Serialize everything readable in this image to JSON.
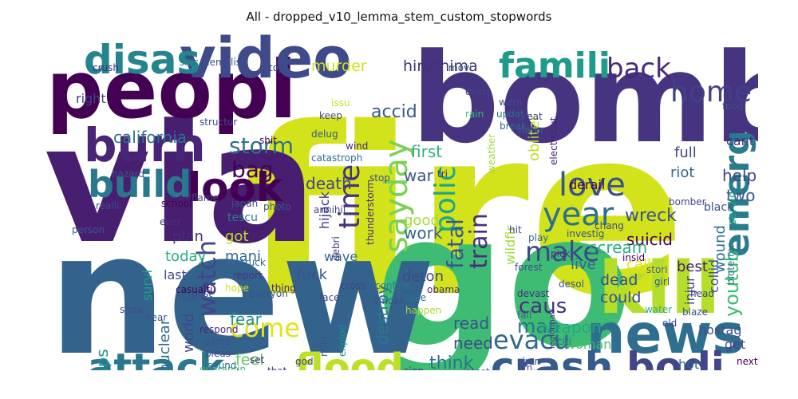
{
  "chart_data": {
    "type": "wordcloud",
    "title": "All - dropped_v10_lemma_stem_custom_stopwords",
    "background": "#ffffff",
    "colormap": "viridis",
    "words": [
      {
        "text": "fire",
        "weight": 1.0,
        "color": "#d2e21b"
      },
      {
        "text": "go",
        "weight": 0.8,
        "color": "#3fbc73"
      },
      {
        "text": "new",
        "weight": 0.78,
        "color": "#33638d"
      },
      {
        "text": "via",
        "weight": 0.76,
        "color": "#481f70"
      },
      {
        "text": "bomb",
        "weight": 0.74,
        "color": "#463480"
      },
      {
        "text": "peopl",
        "weight": 0.55,
        "color": "#440154"
      },
      {
        "text": "video",
        "weight": 0.42,
        "color": "#3e4a89"
      },
      {
        "text": "kill",
        "weight": 0.38,
        "color": "#b5de2b"
      },
      {
        "text": "news",
        "weight": 0.36,
        "color": "#2e6e8e"
      },
      {
        "text": "burn",
        "weight": 0.3,
        "color": "#482576"
      },
      {
        "text": "disas",
        "weight": 0.3,
        "color": "#25858e"
      },
      {
        "text": "crash",
        "weight": 0.28,
        "color": "#365c8d"
      },
      {
        "text": "bodi",
        "weight": 0.28,
        "color": "#404688"
      },
      {
        "text": "flood",
        "weight": 0.26,
        "color": "#bddf26"
      },
      {
        "text": "attack",
        "weight": 0.25,
        "color": "#2a788e"
      },
      {
        "text": "look",
        "weight": 0.25,
        "color": "#440154"
      },
      {
        "text": "build",
        "weight": 0.24,
        "color": "#2a788e"
      },
      {
        "text": "famili",
        "weight": 0.23,
        "color": "#1e9c89"
      },
      {
        "text": "emerg",
        "weight": 0.22,
        "color": "#287c8e"
      },
      {
        "text": "year",
        "weight": 0.22,
        "color": "#2d708e"
      },
      {
        "text": "sayday",
        "weight": 0.21,
        "color": "#7ad151"
      },
      {
        "text": "love",
        "weight": 0.2,
        "color": "#3b518b"
      },
      {
        "text": "home",
        "weight": 0.19,
        "color": "#424086"
      },
      {
        "text": "polic",
        "weight": 0.19,
        "color": "#21a685"
      },
      {
        "text": "back",
        "weight": 0.18,
        "color": "#482878"
      },
      {
        "text": "time",
        "weight": 0.18,
        "color": "#46327e"
      },
      {
        "text": "make",
        "weight": 0.18,
        "color": "#3e4989"
      },
      {
        "text": "come",
        "weight": 0.17,
        "color": "#e1e418"
      },
      {
        "text": "evacu",
        "weight": 0.17,
        "color": "#31688e"
      },
      {
        "text": "watch",
        "weight": 0.16,
        "color": "#404588"
      },
      {
        "text": "storm",
        "weight": 0.14,
        "color": "#2c728e"
      },
      {
        "text": "train",
        "weight": 0.14,
        "color": "#472d7b"
      },
      {
        "text": "bag",
        "weight": 0.14,
        "color": "#440154"
      },
      {
        "text": "fatal",
        "weight": 0.13,
        "color": "#39568c"
      },
      {
        "text": "youtub",
        "weight": 0.12,
        "color": "#3dbc74"
      },
      {
        "text": "wreck",
        "weight": 0.12,
        "color": "#3b518b"
      },
      {
        "text": "california",
        "weight": 0.11,
        "color": "#2d718e"
      },
      {
        "text": "suicid",
        "weight": 0.11,
        "color": "#440154"
      },
      {
        "text": "scream",
        "weight": 0.11,
        "color": "#29af7f"
      },
      {
        "text": "caus",
        "weight": 0.11,
        "color": "#472f7d"
      },
      {
        "text": "man",
        "weight": 0.11,
        "color": "#2c728e"
      },
      {
        "text": "accid",
        "weight": 0.1,
        "color": "#38598c"
      },
      {
        "text": "death",
        "weight": 0.1,
        "color": "#414487"
      },
      {
        "text": "hiroshima",
        "weight": 0.09,
        "color": "#46307e"
      },
      {
        "text": "murder",
        "weight": 0.09,
        "color": "#d0e11c"
      },
      {
        "text": "weapon",
        "weight": 0.09,
        "color": "#22a785"
      },
      {
        "text": "think",
        "weight": 0.09,
        "color": "#2c738e"
      },
      {
        "text": "life",
        "weight": 0.09,
        "color": "#440154"
      },
      {
        "text": "drown",
        "weight": 0.09,
        "color": "#38598c"
      },
      {
        "text": "fear",
        "weight": 0.09,
        "color": "#218f8d"
      },
      {
        "text": "feel",
        "weight": 0.09,
        "color": "#5ec962"
      },
      {
        "text": "destroy",
        "weight": 0.09,
        "color": "#2a768e"
      },
      {
        "text": "collaps",
        "weight": 0.09,
        "color": "#21918c"
      },
      {
        "text": "survi",
        "weight": 0.08,
        "color": "#1fa088"
      },
      {
        "text": "nuclear",
        "weight": 0.08,
        "color": "#306a8e"
      },
      {
        "text": "world",
        "weight": 0.08,
        "color": "#3f4788"
      },
      {
        "text": "need",
        "weight": 0.08,
        "color": "#3e4989"
      },
      {
        "text": "read",
        "weight": 0.08,
        "color": "#3b528b"
      },
      {
        "text": "work",
        "weight": 0.08,
        "color": "#33638d"
      },
      {
        "text": "good",
        "weight": 0.08,
        "color": "#a5db36"
      },
      {
        "text": "war",
        "weight": 0.08,
        "color": "#3a538b"
      },
      {
        "text": "first",
        "weight": 0.08,
        "color": "#2db27d"
      },
      {
        "text": "two",
        "weight": 0.08,
        "color": "#38598c"
      },
      {
        "text": "help",
        "weight": 0.08,
        "color": "#404588"
      },
      {
        "text": "dead",
        "weight": 0.08,
        "color": "#3c4f8a"
      },
      {
        "text": "could",
        "weight": 0.08,
        "color": "#3f4889"
      },
      {
        "text": "obliter",
        "weight": 0.08,
        "color": "#c2df23"
      },
      {
        "text": "derail",
        "weight": 0.07,
        "color": "#440154"
      },
      {
        "text": "fuck",
        "weight": 0.07,
        "color": "#3b518b"
      },
      {
        "text": "deton",
        "weight": 0.07,
        "color": "#3e4a89"
      },
      {
        "text": "today",
        "weight": 0.07,
        "color": "#29af7f"
      },
      {
        "text": "plan",
        "weight": 0.07,
        "color": "#472d7b"
      },
      {
        "text": "last",
        "weight": 0.07,
        "color": "#3e4989"
      },
      {
        "text": "full",
        "weight": 0.07,
        "color": "#404688"
      },
      {
        "text": "riot",
        "weight": 0.07,
        "color": "#31688e"
      },
      {
        "text": "cant",
        "weight": 0.07,
        "color": "#46337f"
      },
      {
        "text": "wound",
        "weight": 0.07,
        "color": "#2e6f8e"
      },
      {
        "text": "hostag",
        "weight": 0.07,
        "color": "#3b518b"
      },
      {
        "text": "get",
        "weight": 0.07,
        "color": "#3f4889"
      },
      {
        "text": "injur",
        "weight": 0.07,
        "color": "#414487"
      },
      {
        "text": "collid",
        "weight": 0.07,
        "color": "#39568c"
      },
      {
        "text": "call",
        "weight": 0.07,
        "color": "#e5e419"
      },
      {
        "text": "best",
        "weight": 0.07,
        "color": "#482071"
      },
      {
        "text": "wildfir",
        "weight": 0.07,
        "color": "#a2da37"
      },
      {
        "text": "live",
        "weight": 0.07,
        "color": "#31688e"
      },
      {
        "text": "got",
        "weight": 0.07,
        "color": "#bade28"
      },
      {
        "text": "mani",
        "weight": 0.07,
        "color": "#31688e"
      },
      {
        "text": "servic",
        "weight": 0.06,
        "color": "#22a884"
      },
      {
        "text": "bioterror",
        "weight": 0.06,
        "color": "#2a768e"
      },
      {
        "text": "hijack",
        "weight": 0.06,
        "color": "#46337f"
      },
      {
        "text": "wave",
        "weight": 0.06,
        "color": "#31688e"
      },
      {
        "text": "tescu",
        "weight": 0.06,
        "color": "#277f8e"
      },
      {
        "text": "thunderstorm",
        "weight": 0.06,
        "color": "#472d7b"
      },
      {
        "text": "woman",
        "weight": 0.06,
        "color": "#44bf70"
      },
      {
        "text": "even",
        "weight": 0.06,
        "color": "#2c738e"
      },
      {
        "text": "hot",
        "weight": 0.06,
        "color": "#2f6b8e"
      },
      {
        "text": "black",
        "weight": 0.06,
        "color": "#3c4f8a"
      },
      {
        "text": "right",
        "weight": 0.06,
        "color": "#424186"
      },
      {
        "text": "crush",
        "weight": 0.05,
        "color": "#46307e"
      },
      {
        "text": "sinc",
        "weight": 0.05,
        "color": "#287d8e"
      },
      {
        "text": "demolish",
        "weight": 0.05,
        "color": "#3b528b"
      },
      {
        "text": "top",
        "weight": 0.05,
        "color": "#3f4788"
      },
      {
        "text": "movi",
        "weight": 0.05,
        "color": "#38598c"
      },
      {
        "text": "rain",
        "weight": 0.05,
        "color": "#3aba76"
      },
      {
        "text": "bomber",
        "weight": 0.05,
        "color": "#414487"
      },
      {
        "text": "stop",
        "weight": 0.05,
        "color": "#3b518b"
      },
      {
        "text": "everi",
        "weight": 0.05,
        "color": "#3f4889"
      },
      {
        "text": "updat",
        "weight": 0.05,
        "color": "#2d708e"
      },
      {
        "text": "warn",
        "weight": 0.05,
        "color": "#3e4a89"
      },
      {
        "text": "natur",
        "weight": 0.05,
        "color": "#32658e"
      },
      {
        "text": "electrocut",
        "weight": 0.05,
        "color": "#482576"
      },
      {
        "text": "weather",
        "weight": 0.05,
        "color": "#a0da39"
      },
      {
        "text": "wind",
        "weight": 0.05,
        "color": "#472c7a"
      },
      {
        "text": "catastroph",
        "weight": 0.05,
        "color": "#2f6c8e"
      },
      {
        "text": "school",
        "weight": 0.05,
        "color": "#440154"
      },
      {
        "text": "photo",
        "weight": 0.05,
        "color": "#3b518b"
      },
      {
        "text": "japan",
        "weight": 0.05,
        "color": "#3e4a89"
      },
      {
        "text": "truck",
        "weight": 0.05,
        "color": "#32648e"
      },
      {
        "text": "report",
        "weight": 0.05,
        "color": "#472f7d"
      },
      {
        "text": "hope",
        "weight": 0.05,
        "color": "#c8e020"
      },
      {
        "text": "everyon",
        "weight": 0.05,
        "color": "#3c4f8a"
      },
      {
        "text": "thing",
        "weight": 0.05,
        "color": "#482475"
      },
      {
        "text": "face",
        "weight": 0.05,
        "color": "#3f4788"
      },
      {
        "text": "obama",
        "weight": 0.05,
        "color": "#46337f"
      },
      {
        "text": "confirm",
        "weight": 0.05,
        "color": "#2a788e"
      },
      {
        "text": "devast",
        "weight": 0.05,
        "color": "#46327e"
      },
      {
        "text": "desol",
        "weight": 0.05,
        "color": "#39568c"
      },
      {
        "text": "legionnair",
        "weight": 0.05,
        "color": "#46307e"
      },
      {
        "text": "siren",
        "weight": 0.05,
        "color": "#414487"
      },
      {
        "text": "northern",
        "weight": 0.05,
        "color": "#33638d"
      },
      {
        "text": "sever",
        "weight": 0.05,
        "color": "#38598c"
      },
      {
        "text": "latest",
        "weight": 0.05,
        "color": "#3b528b"
      },
      {
        "text": "citi",
        "weight": 0.05,
        "color": "#2f6c8e"
      },
      {
        "text": "offici",
        "weight": 0.05,
        "color": "#3b518b"
      },
      {
        "text": "next",
        "weight": 0.05,
        "color": "#440154"
      },
      {
        "text": "state",
        "weight": 0.05,
        "color": "#46337f"
      },
      {
        "text": "atom",
        "weight": 0.05,
        "color": "#3f4788"
      },
      {
        "text": "girl",
        "weight": 0.05,
        "color": "#38598c"
      },
      {
        "text": "forest",
        "weight": 0.05,
        "color": "#3c4f8a"
      },
      {
        "text": "pick",
        "weight": 0.05,
        "color": "#472d7b"
      },
      {
        "text": "play",
        "weight": 0.05,
        "color": "#31688e"
      },
      {
        "text": "hit",
        "weight": 0.05,
        "color": "#404588"
      },
      {
        "text": "smoke",
        "weight": 0.05,
        "color": "#3b518b"
      },
      {
        "text": "save",
        "weight": 0.05,
        "color": "#2c738e"
      },
      {
        "text": "cross",
        "weight": 0.05,
        "color": "#414487"
      },
      {
        "text": "debri",
        "weight": 0.05,
        "color": "#46327e"
      },
      {
        "text": "annihil",
        "weight": 0.05,
        "color": "#3e4a89"
      },
      {
        "text": "explod",
        "weight": 0.05,
        "color": "#21918c"
      },
      {
        "text": "releas",
        "weight": 0.04,
        "color": "#33638d"
      },
      {
        "text": "milit",
        "weight": 0.04,
        "color": "#3b518b"
      },
      {
        "text": "post",
        "weight": 0.04,
        "color": "#3f4889"
      },
      {
        "text": "hazard",
        "weight": 0.04,
        "color": "#3b528b"
      },
      {
        "text": "flame",
        "weight": 0.04,
        "color": "#404588"
      },
      {
        "text": "realli",
        "weight": 0.04,
        "color": "#3e4a89"
      },
      {
        "text": "person",
        "weight": 0.04,
        "color": "#38598c"
      },
      {
        "text": "casualti",
        "weight": 0.04,
        "color": "#440154"
      },
      {
        "text": "miss",
        "weight": 0.04,
        "color": "#3b518b"
      },
      {
        "text": "respond",
        "weight": 0.04,
        "color": "#482878"
      },
      {
        "text": "pleas",
        "weight": 0.04,
        "color": "#3e4a89"
      },
      {
        "text": "sound",
        "weight": 0.04,
        "color": "#31688e"
      },
      {
        "text": "quarantin",
        "weight": 0.04,
        "color": "#3aba76"
      },
      {
        "text": "your",
        "weight": 0.04,
        "color": "#440154"
      },
      {
        "text": "game",
        "weight": 0.04,
        "color": "#3b518b"
      },
      {
        "text": "set",
        "weight": 0.04,
        "color": "#472d7b"
      },
      {
        "text": "god",
        "weight": 0.04,
        "color": "#3e4a89"
      },
      {
        "text": "that",
        "weight": 0.04,
        "color": "#46327e"
      },
      {
        "text": "as",
        "weight": 0.04,
        "color": "#440154"
      },
      {
        "text": "like",
        "weight": 0.04,
        "color": "#3b518b"
      },
      {
        "text": "fall",
        "weight": 0.04,
        "color": "#31688e"
      },
      {
        "text": "pm",
        "weight": 0.04,
        "color": "#414487"
      },
      {
        "text": "old",
        "weight": 0.04,
        "color": "#3e4a89"
      },
      {
        "text": "water",
        "weight": 0.04,
        "color": "#29af7f"
      },
      {
        "text": "blaze",
        "weight": 0.04,
        "color": "#3b518b"
      },
      {
        "text": "sign",
        "weight": 0.04,
        "color": "#472d7b"
      },
      {
        "text": "happen",
        "weight": 0.04,
        "color": "#a5db36"
      },
      {
        "text": "show",
        "weight": 0.04,
        "color": "#3e4a89"
      },
      {
        "text": "near",
        "weight": 0.04,
        "color": "#3b528b"
      },
      {
        "text": "shit",
        "weight": 0.04,
        "color": "#440154"
      },
      {
        "text": "delug",
        "weight": 0.04,
        "color": "#38598c"
      },
      {
        "text": "keep",
        "weight": 0.04,
        "color": "#3e4a89"
      },
      {
        "text": "issu",
        "weight": 0.04,
        "color": "#c2df23"
      },
      {
        "text": "break",
        "weight": 0.04,
        "color": "#31688e"
      },
      {
        "text": "great",
        "weight": 0.04,
        "color": "#414487"
      },
      {
        "text": "tri",
        "weight": 0.04,
        "color": "#472d7b"
      },
      {
        "text": "chang",
        "weight": 0.04,
        "color": "#3e4a89"
      },
      {
        "text": "investig",
        "weight": 0.04,
        "color": "#3b518b"
      },
      {
        "text": "insid",
        "weight": 0.04,
        "color": "#440154"
      },
      {
        "text": "head",
        "weight": 0.04,
        "color": "#3f4788"
      },
      {
        "text": "stori",
        "weight": 0.04,
        "color": "#31688e"
      },
      {
        "text": "food",
        "weight": 0.04,
        "color": "#3b518b"
      },
      {
        "text": "ever",
        "weight": 0.04,
        "color": "#46327e"
      },
      {
        "text": "structur",
        "weight": 0.04,
        "color": "#3e4a89"
      }
    ]
  }
}
